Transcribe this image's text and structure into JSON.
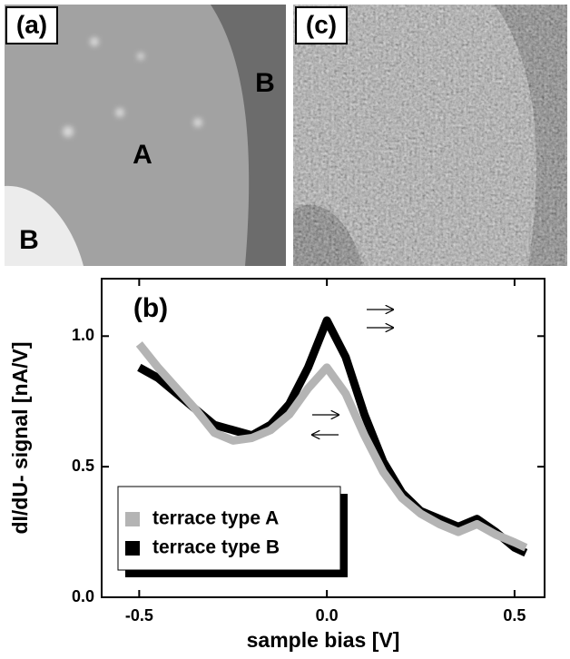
{
  "images": [
    {
      "label": "(a)",
      "annotations": [
        "A",
        "B",
        "B"
      ]
    },
    {
      "label": "(c)"
    }
  ],
  "chart_data": {
    "type": "line",
    "label": "(b)",
    "xlabel": "sample bias [V]",
    "ylabel": "dI/dU- signal [nA/V]",
    "xlim": [
      -0.6,
      0.58
    ],
    "ylim": [
      0,
      1.22
    ],
    "xticks": [
      -0.5,
      {
        "value": 0,
        "label": "0.0"
      },
      0.5
    ],
    "yticks": [
      {
        "value": 0,
        "label": "0.0"
      },
      0.5,
      {
        "value": 1,
        "label": "1.0"
      }
    ],
    "x": [
      -0.5,
      -0.45,
      -0.4,
      -0.35,
      -0.3,
      -0.25,
      -0.2,
      -0.15,
      -0.1,
      -0.05,
      0,
      0.05,
      0.1,
      0.15,
      0.2,
      0.25,
      0.3,
      0.35,
      0.4,
      0.45,
      0.5,
      0.53
    ],
    "series": [
      {
        "name": "terrace type B",
        "color": "#000000",
        "values": [
          0.88,
          0.84,
          0.78,
          0.72,
          0.66,
          0.64,
          0.62,
          0.66,
          0.74,
          0.88,
          1.06,
          0.92,
          0.7,
          0.52,
          0.4,
          0.33,
          0.3,
          0.27,
          0.3,
          0.25,
          0.19,
          0.17
        ]
      },
      {
        "name": "terrace type A",
        "color": "#b4b4b4",
        "values": [
          0.97,
          0.88,
          0.8,
          0.72,
          0.63,
          0.6,
          0.61,
          0.64,
          0.7,
          0.8,
          0.88,
          0.78,
          0.62,
          0.48,
          0.38,
          0.32,
          0.28,
          0.25,
          0.28,
          0.24,
          0.21,
          0.19
        ]
      }
    ],
    "legend": "lower-left"
  }
}
